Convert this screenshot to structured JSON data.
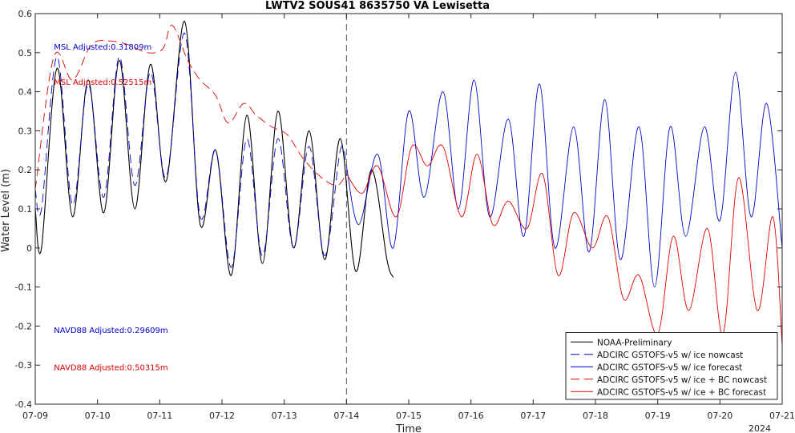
{
  "chart_data": {
    "type": "line",
    "title": "LWTV2 SOUS41 8635750 VA Lewisetta",
    "xlabel": "Time",
    "ylabel": "Water Level (m)",
    "xlim": [
      0,
      12
    ],
    "ylim": [
      -0.4,
      0.6
    ],
    "x_ticks": [
      0,
      1,
      2,
      3,
      4,
      5,
      6,
      7,
      8,
      9,
      10,
      11,
      12
    ],
    "x_tick_labels": [
      "07-09",
      "07-10",
      "07-11",
      "07-12",
      "07-13",
      "07-14",
      "07-15",
      "07-16",
      "07-17",
      "07-18",
      "07-19",
      "07-20",
      "07-21"
    ],
    "x_year_label": "2024",
    "y_ticks": [
      -0.4,
      -0.3,
      -0.2,
      -0.1,
      0,
      0.1,
      0.2,
      0.3,
      0.4,
      0.5,
      0.6
    ],
    "y_tick_labels": [
      "-0.4",
      "-0.3",
      "-0.2",
      "-0.1",
      "0",
      "0.1",
      "0.2",
      "0.3",
      "0.4",
      "0.5",
      "0.6"
    ],
    "grid": false,
    "nowcast_forecast_divider_x": 5,
    "legend_position": "bottom-right",
    "annotations": [
      {
        "text": "MSL Adjusted:0.31809m",
        "color": "#0000cc",
        "x": 0.3,
        "y": 0.508
      },
      {
        "text": "MSL Adjusted:0.52515m",
        "color": "#e00000",
        "x": 0.3,
        "y": 0.418
      },
      {
        "text": "NAVD88 Adjusted:0.29609m",
        "color": "#0000cc",
        "x": 0.3,
        "y": -0.218
      },
      {
        "text": "NAVD88 Adjusted:0.50315m",
        "color": "#e00000",
        "x": 0.3,
        "y": -0.313
      }
    ],
    "series": [
      {
        "name": "NOAA-Preliminary",
        "color": "#000000",
        "dash": "solid",
        "x": [
          0,
          0.1,
          0.35,
          0.6,
          0.85,
          1.1,
          1.35,
          1.6,
          1.85,
          2.1,
          2.4,
          2.65,
          2.9,
          3.15,
          3.4,
          3.65,
          3.9,
          4.15,
          4.4,
          4.65,
          4.9,
          5.15,
          5.4,
          5.65,
          5.75
        ],
        "y": [
          0.1,
          0.0,
          0.46,
          0.08,
          0.43,
          0.09,
          0.48,
          0.1,
          0.47,
          0.17,
          0.58,
          0.06,
          0.25,
          -0.07,
          0.34,
          -0.04,
          0.35,
          0.0,
          0.3,
          -0.03,
          0.28,
          -0.06,
          0.2,
          -0.03,
          -0.075
        ]
      },
      {
        "name": "ADCIRC GSTOFS-v5 w/ ice nowcast",
        "color": "#0000cc",
        "dash": "dash",
        "x": [
          0,
          0.1,
          0.35,
          0.6,
          0.85,
          1.1,
          1.35,
          1.6,
          1.85,
          2.1,
          2.4,
          2.65,
          2.9,
          3.15,
          3.4,
          3.65,
          3.9,
          4.15,
          4.4,
          4.65,
          4.9,
          5.0
        ],
        "y": [
          0.15,
          0.1,
          0.49,
          0.11,
          0.42,
          0.13,
          0.49,
          0.16,
          0.45,
          0.18,
          0.55,
          0.08,
          0.25,
          -0.05,
          0.28,
          -0.02,
          0.28,
          0.0,
          0.26,
          -0.02,
          0.25,
          0.21
        ]
      },
      {
        "name": "ADCIRC GSTOFS-v5 w/ ice forecast",
        "color": "#0000cc",
        "dash": "solid",
        "x": [
          5.0,
          5.2,
          5.5,
          5.75,
          6.0,
          6.25,
          6.55,
          6.8,
          7.05,
          7.3,
          7.6,
          7.85,
          8.1,
          8.35,
          8.65,
          8.9,
          9.15,
          9.4,
          9.7,
          9.95,
          10.2,
          10.45,
          10.75,
          11.0,
          11.25,
          11.5,
          11.75,
          12.0
        ],
        "y": [
          0.21,
          0.06,
          0.24,
          0.0,
          0.35,
          0.13,
          0.4,
          0.1,
          0.43,
          0.08,
          0.33,
          0.03,
          0.42,
          0.0,
          0.31,
          -0.01,
          0.38,
          -0.03,
          0.31,
          -0.1,
          0.31,
          0.03,
          0.31,
          0.07,
          0.45,
          0.08,
          0.37,
          0.0
        ]
      },
      {
        "name": "ADCIRC GSTOFS-v5 w/ ice + BC nowcast",
        "color": "#e00000",
        "dash": "dash",
        "x": [
          0,
          0.3,
          0.6,
          0.9,
          1.2,
          1.5,
          1.8,
          2.05,
          2.2,
          2.45,
          2.65,
          2.9,
          3.1,
          3.35,
          3.55,
          3.8,
          4.05,
          4.3,
          4.6,
          4.85,
          5.0
        ],
        "y": [
          0.15,
          0.49,
          0.43,
          0.52,
          0.53,
          0.52,
          0.5,
          0.51,
          0.57,
          0.48,
          0.43,
          0.39,
          0.32,
          0.37,
          0.34,
          0.31,
          0.29,
          0.23,
          0.18,
          0.16,
          0.19
        ]
      },
      {
        "name": "ADCIRC GSTOFS-v5 w/ ice + BC forecast",
        "color": "#e00000",
        "dash": "solid",
        "x": [
          5.0,
          5.25,
          5.5,
          5.8,
          6.05,
          6.3,
          6.55,
          6.85,
          7.1,
          7.35,
          7.6,
          7.9,
          8.15,
          8.4,
          8.65,
          8.95,
          9.2,
          9.45,
          9.7,
          10.0,
          10.25,
          10.5,
          10.8,
          11.05,
          11.3,
          11.6,
          11.85,
          12.0
        ],
        "y": [
          0.19,
          0.14,
          0.21,
          0.08,
          0.26,
          0.21,
          0.26,
          0.08,
          0.24,
          0.06,
          0.12,
          0.05,
          0.19,
          -0.07,
          0.09,
          0.0,
          0.08,
          -0.13,
          -0.07,
          -0.22,
          0.03,
          -0.16,
          0.05,
          -0.22,
          0.18,
          -0.16,
          0.08,
          -0.25
        ]
      }
    ]
  }
}
